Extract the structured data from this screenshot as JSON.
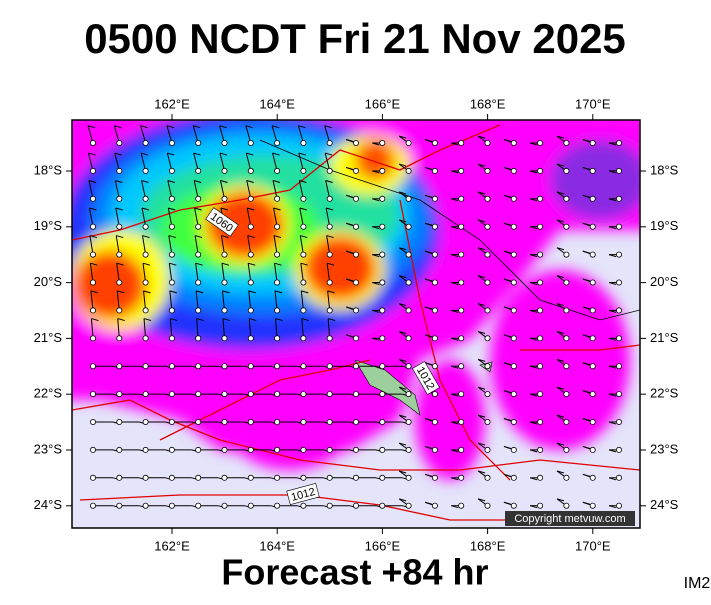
{
  "title": "0500 NCDT Fri 21 Nov 2025",
  "map": {
    "lon_labels": [
      "162°E",
      "164°E",
      "166°E",
      "168°E",
      "170°E"
    ],
    "lat_labels": [
      "18°S",
      "19°S",
      "20°S",
      "21°S",
      "22°S",
      "23°S",
      "24°S"
    ],
    "isobar_labels": [
      "1060",
      "1012",
      "1012"
    ],
    "copyright": "Copyright metvuw.com"
  },
  "footer": {
    "forecast": "Forecast +84 hr",
    "code": "IM2"
  }
}
